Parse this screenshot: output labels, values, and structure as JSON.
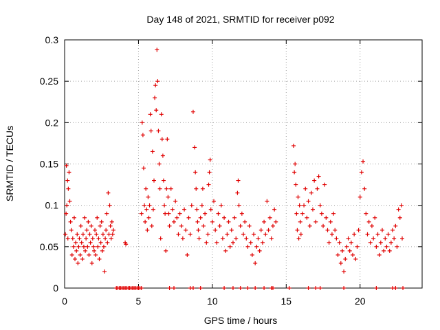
{
  "chart_data": {
    "type": "scatter",
    "title": "Day 148 of 2021, SRMTID for receiver p092",
    "xlabel": "GPS time / hours",
    "ylabel": "SRMTID / TECUs",
    "xlim": [
      0,
      24.2
    ],
    "ylim": [
      0,
      0.3
    ],
    "xticks": [
      0,
      5,
      10,
      15,
      20
    ],
    "xtick_labels": [
      "0",
      "5",
      "10",
      "15",
      "20"
    ],
    "yticks": [
      0,
      0.05,
      0.1,
      0.15,
      0.2,
      0.25,
      0.3
    ],
    "ytick_labels": [
      "0",
      "0.05",
      "0.1",
      "0.15",
      "0.2",
      "0.25",
      "0.3"
    ],
    "grid": true,
    "marker": "+",
    "color": "#e00000",
    "series": [
      {
        "name": "SRMTID",
        "points": [
          [
            0.05,
            0.065
          ],
          [
            0.1,
            0.09
          ],
          [
            0.12,
            0.148
          ],
          [
            0.15,
            0.1
          ],
          [
            0.2,
            0.13
          ],
          [
            0.22,
            0.06
          ],
          [
            0.25,
            0.12
          ],
          [
            0.3,
            0.14
          ],
          [
            0.35,
            0.105
          ],
          [
            0.4,
            0.08
          ],
          [
            0.45,
            0.07
          ],
          [
            0.5,
            0.04
          ],
          [
            0.55,
            0.06
          ],
          [
            0.6,
            0.05
          ],
          [
            0.65,
            0.085
          ],
          [
            0.7,
            0.035
          ],
          [
            0.75,
            0.055
          ],
          [
            0.8,
            0.045
          ],
          [
            0.85,
            0.065
          ],
          [
            0.9,
            0.03
          ],
          [
            0.95,
            0.05
          ],
          [
            1.0,
            0.06
          ],
          [
            1.05,
            0.04
          ],
          [
            1.1,
            0.075
          ],
          [
            1.15,
            0.055
          ],
          [
            1.2,
            0.035
          ],
          [
            1.25,
            0.065
          ],
          [
            1.3,
            0.05
          ],
          [
            1.35,
            0.085
          ],
          [
            1.4,
            0.045
          ],
          [
            1.45,
            0.06
          ],
          [
            1.5,
            0.07
          ],
          [
            1.55,
            0.05
          ],
          [
            1.6,
            0.08
          ],
          [
            1.65,
            0.04
          ],
          [
            1.7,
            0.065
          ],
          [
            1.75,
            0.055
          ],
          [
            1.8,
            0.075
          ],
          [
            1.85,
            0.03
          ],
          [
            1.9,
            0.06
          ],
          [
            1.95,
            0.05
          ],
          [
            2.0,
            0.045
          ],
          [
            2.05,
            0.07
          ],
          [
            2.1,
            0.04
          ],
          [
            2.15,
            0.065
          ],
          [
            2.2,
            0.085
          ],
          [
            2.25,
            0.05
          ],
          [
            2.3,
            0.06
          ],
          [
            2.35,
            0.035
          ],
          [
            2.4,
            0.075
          ],
          [
            2.45,
            0.055
          ],
          [
            2.5,
            0.08
          ],
          [
            2.55,
            0.045
          ],
          [
            2.6,
            0.065
          ],
          [
            2.65,
            0.05
          ],
          [
            2.7,
            0.02
          ],
          [
            2.75,
            0.06
          ],
          [
            2.8,
            0.07
          ],
          [
            2.85,
            0.09
          ],
          [
            2.9,
            0.055
          ],
          [
            2.95,
            0.115
          ],
          [
            3.0,
            0.065
          ],
          [
            3.05,
            0.1
          ],
          [
            3.1,
            0.075
          ],
          [
            3.15,
            0.06
          ],
          [
            3.2,
            0.08
          ],
          [
            3.25,
            0.065
          ],
          [
            3.3,
            0.07
          ],
          [
            4.1,
            0.055
          ],
          [
            4.15,
            0.053
          ],
          [
            5.2,
            0.09
          ],
          [
            5.25,
            0.2
          ],
          [
            5.3,
            0.185
          ],
          [
            5.35,
            0.145
          ],
          [
            5.4,
            0.1
          ],
          [
            5.45,
            0.08
          ],
          [
            5.5,
            0.12
          ],
          [
            5.55,
            0.095
          ],
          [
            5.6,
            0.07
          ],
          [
            5.65,
            0.11
          ],
          [
            5.7,
            0.085
          ],
          [
            5.75,
            0.1
          ],
          [
            5.8,
            0.21
          ],
          [
            5.85,
            0.19
          ],
          [
            5.9,
            0.075
          ],
          [
            5.95,
            0.165
          ],
          [
            6.0,
            0.095
          ],
          [
            6.05,
            0.13
          ],
          [
            6.1,
            0.23
          ],
          [
            6.15,
            0.245
          ],
          [
            6.2,
            0.215
          ],
          [
            6.25,
            0.288
          ],
          [
            6.3,
            0.25
          ],
          [
            6.35,
            0.19
          ],
          [
            6.4,
            0.15
          ],
          [
            6.45,
            0.12
          ],
          [
            6.5,
            0.06
          ],
          [
            6.55,
            0.21
          ],
          [
            6.6,
            0.18
          ],
          [
            6.65,
            0.16
          ],
          [
            6.7,
            0.13
          ],
          [
            6.75,
            0.1
          ],
          [
            6.8,
            0.09
          ],
          [
            6.85,
            0.045
          ],
          [
            6.9,
            0.12
          ],
          [
            6.95,
            0.18
          ],
          [
            7.0,
            0.11
          ],
          [
            7.05,
            0.09
          ],
          [
            7.1,
            0.075
          ],
          [
            7.2,
            0.12
          ],
          [
            7.3,
            0.095
          ],
          [
            7.4,
            0.08
          ],
          [
            7.5,
            0.105
          ],
          [
            7.6,
            0.085
          ],
          [
            7.7,
            0.065
          ],
          [
            7.8,
            0.09
          ],
          [
            7.9,
            0.075
          ],
          [
            8.0,
            0.06
          ],
          [
            8.1,
            0.095
          ],
          [
            8.2,
            0.07
          ],
          [
            8.3,
            0.04
          ],
          [
            8.4,
            0.085
          ],
          [
            8.5,
            0.065
          ],
          [
            8.6,
            0.1
          ],
          [
            8.7,
            0.213
          ],
          [
            8.8,
            0.17
          ],
          [
            8.85,
            0.14
          ],
          [
            8.9,
            0.12
          ],
          [
            8.95,
            0.095
          ],
          [
            9.0,
            0.08
          ],
          [
            9.05,
            0.07
          ],
          [
            9.1,
            0.06
          ],
          [
            9.2,
            0.085
          ],
          [
            9.3,
            0.1
          ],
          [
            9.35,
            0.12
          ],
          [
            9.4,
            0.075
          ],
          [
            9.5,
            0.09
          ],
          [
            9.6,
            0.055
          ],
          [
            9.7,
            0.065
          ],
          [
            9.75,
            0.125
          ],
          [
            9.8,
            0.14
          ],
          [
            9.85,
            0.155
          ],
          [
            9.9,
            0.095
          ],
          [
            10.0,
            0.08
          ],
          [
            10.1,
            0.105
          ],
          [
            10.2,
            0.07
          ],
          [
            10.3,
            0.055
          ],
          [
            10.4,
            0.09
          ],
          [
            10.5,
            0.075
          ],
          [
            10.6,
            0.1
          ],
          [
            10.7,
            0.06
          ],
          [
            10.8,
            0.085
          ],
          [
            10.9,
            0.045
          ],
          [
            11.0,
            0.065
          ],
          [
            11.1,
            0.08
          ],
          [
            11.2,
            0.05
          ],
          [
            11.3,
            0.07
          ],
          [
            11.4,
            0.055
          ],
          [
            11.5,
            0.085
          ],
          [
            11.6,
            0.06
          ],
          [
            11.7,
            0.115
          ],
          [
            11.75,
            0.13
          ],
          [
            11.8,
            0.1
          ],
          [
            11.9,
            0.075
          ],
          [
            12.0,
            0.09
          ],
          [
            12.1,
            0.065
          ],
          [
            12.2,
            0.08
          ],
          [
            12.3,
            0.06
          ],
          [
            12.4,
            0.05
          ],
          [
            12.5,
            0.075
          ],
          [
            12.6,
            0.055
          ],
          [
            12.7,
            0.04
          ],
          [
            12.8,
            0.065
          ],
          [
            12.9,
            0.03
          ],
          [
            13.0,
            0.05
          ],
          [
            13.1,
            0.06
          ],
          [
            13.2,
            0.045
          ],
          [
            13.3,
            0.07
          ],
          [
            13.4,
            0.055
          ],
          [
            13.5,
            0.08
          ],
          [
            13.6,
            0.065
          ],
          [
            13.7,
            0.105
          ],
          [
            13.8,
            0.07
          ],
          [
            13.9,
            0.085
          ],
          [
            14.0,
            0.06
          ],
          [
            14.1,
            0.075
          ],
          [
            14.2,
            0.095
          ],
          [
            14.3,
            0.08
          ],
          [
            15.5,
            0.172
          ],
          [
            15.55,
            0.14
          ],
          [
            15.6,
            0.15
          ],
          [
            15.65,
            0.125
          ],
          [
            15.7,
            0.09
          ],
          [
            15.75,
            0.07
          ],
          [
            15.8,
            0.11
          ],
          [
            15.85,
            0.06
          ],
          [
            15.9,
            0.1
          ],
          [
            15.95,
            0.08
          ],
          [
            16.0,
            0.065
          ],
          [
            16.1,
            0.09
          ],
          [
            16.2,
            0.1
          ],
          [
            16.3,
            0.12
          ],
          [
            16.4,
            0.085
          ],
          [
            16.5,
            0.105
          ],
          [
            16.6,
            0.075
          ],
          [
            16.7,
            0.115
          ],
          [
            16.8,
            0.095
          ],
          [
            16.9,
            0.13
          ],
          [
            17.0,
            0.08
          ],
          [
            17.1,
            0.12
          ],
          [
            17.2,
            0.135
          ],
          [
            17.3,
            0.1
          ],
          [
            17.4,
            0.09
          ],
          [
            17.5,
            0.075
          ],
          [
            17.6,
            0.125
          ],
          [
            17.7,
            0.085
          ],
          [
            17.8,
            0.07
          ],
          [
            17.9,
            0.055
          ],
          [
            18.0,
            0.08
          ],
          [
            18.1,
            0.065
          ],
          [
            18.2,
            0.09
          ],
          [
            18.3,
            0.07
          ],
          [
            18.4,
            0.06
          ],
          [
            18.5,
            0.04
          ],
          [
            18.6,
            0.055
          ],
          [
            18.7,
            0.03
          ],
          [
            18.8,
            0.045
          ],
          [
            18.9,
            0.02
          ],
          [
            19.0,
            0.035
          ],
          [
            19.1,
            0.05
          ],
          [
            19.2,
            0.06
          ],
          [
            19.3,
            0.045
          ],
          [
            19.4,
            0.055
          ],
          [
            19.5,
            0.04
          ],
          [
            19.6,
            0.065
          ],
          [
            19.7,
            0.035
          ],
          [
            19.8,
            0.05
          ],
          [
            19.9,
            0.07
          ],
          [
            20.0,
            0.11
          ],
          [
            20.1,
            0.14
          ],
          [
            20.2,
            0.153
          ],
          [
            20.3,
            0.12
          ],
          [
            20.4,
            0.09
          ],
          [
            20.5,
            0.065
          ],
          [
            20.6,
            0.08
          ],
          [
            20.7,
            0.055
          ],
          [
            20.8,
            0.075
          ],
          [
            20.9,
            0.06
          ],
          [
            21.0,
            0.085
          ],
          [
            21.1,
            0.05
          ],
          [
            21.2,
            0.065
          ],
          [
            21.3,
            0.04
          ],
          [
            21.4,
            0.055
          ],
          [
            21.5,
            0.07
          ],
          [
            21.6,
            0.045
          ],
          [
            21.7,
            0.06
          ],
          [
            21.8,
            0.05
          ],
          [
            21.9,
            0.065
          ],
          [
            22.0,
            0.045
          ],
          [
            22.1,
            0.055
          ],
          [
            22.2,
            0.07
          ],
          [
            22.3,
            0.06
          ],
          [
            22.4,
            0.075
          ],
          [
            22.5,
            0.05
          ],
          [
            22.6,
            0.095
          ],
          [
            22.7,
            0.085
          ],
          [
            22.8,
            0.1
          ],
          [
            22.85,
            0.06
          ]
        ]
      },
      {
        "name": "SRMTID (zero)",
        "points": [
          [
            3.5,
            0
          ],
          [
            3.6,
            0
          ],
          [
            3.7,
            0
          ],
          [
            3.8,
            0
          ],
          [
            3.9,
            0
          ],
          [
            4.0,
            0
          ],
          [
            4.1,
            0
          ],
          [
            4.2,
            0
          ],
          [
            4.3,
            0
          ],
          [
            4.4,
            0
          ],
          [
            4.5,
            0
          ],
          [
            4.6,
            0
          ],
          [
            4.7,
            0
          ],
          [
            4.8,
            0
          ],
          [
            4.9,
            0
          ],
          [
            5.0,
            0
          ],
          [
            5.1,
            0
          ],
          [
            5.2,
            0
          ],
          [
            7.1,
            0
          ],
          [
            7.4,
            0
          ],
          [
            8.5,
            0
          ],
          [
            8.7,
            0
          ],
          [
            9.2,
            0
          ],
          [
            10.8,
            0
          ],
          [
            11.4,
            0
          ],
          [
            11.9,
            0
          ],
          [
            12.4,
            0
          ],
          [
            12.9,
            0
          ],
          [
            13.5,
            0
          ],
          [
            14.0,
            0
          ],
          [
            14.1,
            0
          ],
          [
            15.2,
            0
          ],
          [
            16.5,
            0
          ],
          [
            17.0,
            0
          ],
          [
            17.3,
            0
          ],
          [
            18.9,
            0
          ],
          [
            21.1,
            0
          ],
          [
            22.2,
            0
          ],
          [
            22.4,
            0
          ],
          [
            22.9,
            0
          ]
        ]
      }
    ]
  }
}
